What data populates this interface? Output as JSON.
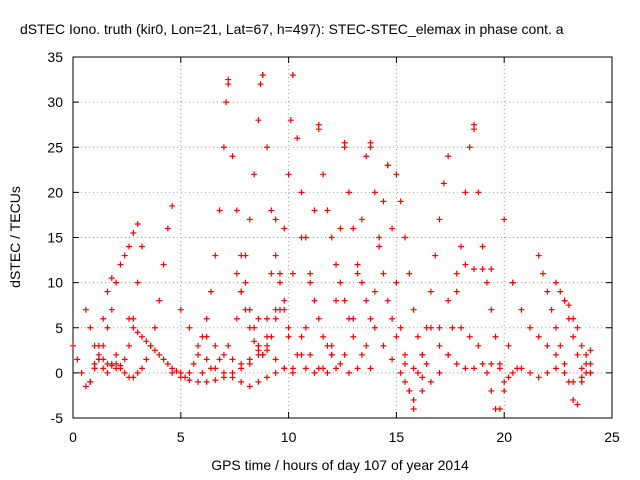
{
  "chart_data": {
    "type": "scatter",
    "title": "dSTEC Iono. truth (kir0, Lon=21, Lat=67, h=497): STEC-STEC_elemax in phase cont. a",
    "xlabel": "GPS time / hours of day 107 of year 2014",
    "ylabel": "dSTEC  / TECUs",
    "xlim": [
      0,
      25
    ],
    "ylim": [
      -5,
      35
    ],
    "xticks": [
      0,
      5,
      10,
      15,
      20,
      25
    ],
    "yticks": [
      -5,
      0,
      5,
      10,
      15,
      20,
      25,
      30,
      35
    ],
    "grid": true,
    "marker": "+",
    "color": "#ff0000",
    "series": [
      {
        "x": [
          0.0,
          0.2,
          0.4,
          0.6,
          0.8,
          1.0,
          1.2,
          1.4,
          1.6,
          1.8,
          2.0
        ],
        "y": [
          3,
          1.5,
          0,
          -1.5,
          -1,
          0.5,
          1.5,
          0.5,
          0,
          1,
          2
        ]
      },
      {
        "x": [
          0.6,
          0.8,
          1.0,
          1.2,
          1.4,
          1.6,
          1.8,
          2.0,
          2.2,
          2.4,
          2.6,
          2.8,
          3.0,
          3.2
        ],
        "y": [
          7,
          5,
          3,
          2,
          1.5,
          1,
          0.8,
          0.5,
          0.8,
          1.5,
          3,
          6,
          10,
          14
        ]
      },
      {
        "x": [
          0.8,
          1.0,
          1.2,
          1.4,
          1.6,
          1.8,
          2.0,
          2.2,
          2.4,
          2.6,
          2.8,
          3.0
        ],
        "y": [
          -1,
          0.5,
          1.5,
          3,
          5,
          7,
          10,
          12,
          13,
          14,
          15.5,
          16.5
        ]
      },
      {
        "x": [
          1.0,
          1.2,
          1.4,
          1.6,
          1.8
        ],
        "y": [
          1,
          3,
          6,
          9,
          10.5
        ]
      },
      {
        "x": [
          2.0,
          2.2,
          2.4,
          2.6,
          2.8,
          3.0,
          3.2,
          3.4,
          3.6,
          3.8,
          4.0,
          4.2,
          4.4,
          4.6
        ],
        "y": [
          1,
          0.5,
          0,
          -0.5,
          -0.5,
          0,
          0.5,
          1.5,
          3,
          5,
          8,
          12,
          16,
          18.5
        ]
      },
      {
        "x": [
          2.6,
          2.8,
          3.0,
          3.2,
          3.4,
          3.6,
          3.8,
          4.0,
          4.2,
          4.4,
          4.6,
          4.8,
          5.0
        ],
        "y": [
          6,
          5,
          4.5,
          4,
          3.5,
          3,
          2.5,
          2,
          1.5,
          1,
          0.5,
          0.2,
          0
        ]
      },
      {
        "x": [
          4.6,
          5.0,
          5.4,
          5.8,
          6.2,
          6.6,
          7.0,
          7.4,
          7.8,
          8.2,
          8.6,
          9.0,
          9.4,
          9.8,
          10.2,
          10.6
        ],
        "y": [
          0,
          -0.5,
          -0.8,
          -1,
          -1,
          -0.8,
          -0.5,
          0,
          0.5,
          1,
          2,
          4,
          6,
          8,
          11,
          15
        ]
      },
      {
        "x": [
          5.0,
          5.4,
          5.8,
          6.2,
          6.6,
          7.0,
          7.4,
          7.8,
          8.2,
          8.6,
          9.0,
          9.4,
          9.8,
          10.2
        ],
        "y": [
          7,
          5,
          3,
          1.5,
          0.5,
          0,
          -0.5,
          -1,
          -1.5,
          -1,
          -0.5,
          0,
          0.5,
          0
        ]
      },
      {
        "x": [
          5.2,
          5.4,
          5.6,
          5.8,
          6.0,
          6.2,
          6.4,
          6.6,
          6.8,
          7.0,
          7.1,
          7.2
        ],
        "y": [
          -0.5,
          0,
          1,
          2,
          4,
          6,
          9,
          13,
          18,
          25,
          30,
          32.5
        ]
      },
      {
        "x": [
          7.2,
          7.4,
          7.6,
          7.8,
          8.0,
          8.2,
          8.4,
          8.6,
          8.8
        ],
        "y": [
          32,
          24,
          18,
          13,
          10,
          7,
          5,
          3,
          2
        ]
      },
      {
        "x": [
          6.0,
          6.4,
          6.8,
          7.2,
          7.6,
          7.8,
          8.0,
          8.2,
          8.4,
          8.6,
          8.7,
          8.8
        ],
        "y": [
          0,
          0.5,
          1.5,
          3,
          6,
          9,
          13,
          17,
          22,
          28,
          32,
          33
        ]
      },
      {
        "x": [
          8.8,
          9.0,
          9.2,
          9.4,
          9.6,
          9.8,
          10.0
        ],
        "y": [
          33,
          25,
          18,
          13,
          10,
          7,
          5
        ]
      },
      {
        "x": [
          6.2,
          6.6,
          7.0,
          7.4,
          7.8,
          8.2,
          8.6,
          9.0,
          9.2,
          9.4
        ],
        "y": [
          4,
          3,
          2,
          1.5,
          1,
          1.5,
          3,
          6,
          11,
          17
        ]
      },
      {
        "x": [
          7.6,
          7.8,
          8.0,
          8.2,
          8.4,
          8.6,
          8.8,
          9.0,
          9.2,
          9.4,
          9.6,
          9.8,
          10.0,
          10.1,
          10.2
        ],
        "y": [
          11,
          9,
          7,
          5,
          3.5,
          2.5,
          2,
          2.5,
          4,
          7,
          11,
          16,
          22,
          28,
          33
        ]
      },
      {
        "x": [
          10.2,
          10.4,
          10.6,
          10.8,
          11.0,
          11.2,
          11.4,
          11.6,
          11.8,
          12.0
        ],
        "y": [
          33,
          26,
          20,
          15,
          11,
          8,
          6,
          4,
          3,
          2
        ]
      },
      {
        "x": [
          8.6,
          9.0,
          9.4,
          9.8,
          10.2,
          10.6,
          10.8,
          11.0,
          11.2,
          11.4
        ],
        "y": [
          6,
          3,
          1.5,
          0.5,
          0.5,
          2,
          5,
          10,
          18,
          27.5
        ]
      },
      {
        "x": [
          11.4,
          11.6,
          11.8,
          12.0,
          12.2,
          12.4,
          12.6,
          12.8,
          13.0,
          13.4,
          13.8
        ],
        "y": [
          27,
          22,
          18,
          15,
          12,
          10,
          8,
          6,
          4,
          2,
          0.5
        ]
      },
      {
        "x": [
          9.6,
          10.0,
          10.4,
          10.8,
          11.2,
          11.6,
          12.0,
          12.2,
          12.4,
          12.6
        ],
        "y": [
          7,
          4,
          2,
          0.5,
          0,
          0.5,
          3,
          8,
          16,
          25.5
        ]
      },
      {
        "x": [
          12.6,
          12.8,
          13.0,
          13.2,
          13.4,
          13.6,
          13.8,
          14.0,
          14.4,
          14.8,
          15.2
        ],
        "y": [
          25,
          20,
          16,
          12,
          10,
          8,
          6,
          5,
          3,
          1.5,
          0
        ]
      },
      {
        "x": [
          10.6,
          11.0,
          11.4,
          11.8,
          12.2,
          12.6,
          13.0,
          13.2,
          13.4,
          13.6,
          13.8
        ],
        "y": [
          4,
          2,
          0.5,
          0,
          0.5,
          2,
          6,
          11,
          17,
          24,
          25.5
        ]
      },
      {
        "x": [
          13.8,
          14.0,
          14.2,
          14.4,
          14.6,
          14.8,
          15.0,
          15.4,
          15.8,
          16.2
        ],
        "y": [
          25,
          20,
          15,
          11,
          8,
          6,
          4,
          2,
          0.5,
          -0.5
        ]
      },
      {
        "x": [
          12.0,
          12.4,
          12.8,
          13.2,
          13.6,
          14.0,
          14.2,
          14.4,
          14.6
        ],
        "y": [
          2,
          1,
          0,
          0.5,
          3,
          9,
          14,
          19,
          23
        ]
      },
      {
        "x": [
          14.6,
          14.8,
          15.0,
          15.2,
          15.4,
          15.6,
          15.8
        ],
        "y": [
          23,
          16,
          10,
          5,
          1,
          -2,
          -4
        ]
      },
      {
        "x": [
          15.0,
          15.2,
          15.4,
          15.6,
          15.8,
          16.0,
          16.2,
          16.4
        ],
        "y": [
          22,
          19,
          15,
          11,
          7,
          4,
          2,
          1
        ]
      },
      {
        "x": [
          15.4,
          15.6,
          15.8,
          16.2,
          16.6,
          17.0,
          17.4,
          17.6,
          17.8,
          18.0,
          18.2,
          18.4,
          18.6
        ],
        "y": [
          -1,
          -2,
          -3,
          -2,
          -1,
          0,
          2,
          5,
          9,
          14,
          20,
          25,
          27.5
        ]
      },
      {
        "x": [
          18.6,
          18.8,
          19.0,
          19.2,
          19.4,
          19.6,
          19.8,
          20.0
        ],
        "y": [
          27,
          20,
          14,
          10,
          7,
          4,
          1,
          -1
        ]
      },
      {
        "x": [
          16.0,
          16.2,
          16.4,
          16.6,
          16.8,
          17.0,
          17.2,
          17.4
        ],
        "y": [
          0,
          2,
          5,
          9,
          13,
          17,
          21,
          24
        ]
      },
      {
        "x": [
          16.6,
          17.0,
          17.4,
          17.8,
          18.2,
          18.6,
          19.0,
          19.4,
          19.8,
          20.2,
          20.6
        ],
        "y": [
          5,
          3,
          2,
          1,
          0.5,
          0.5,
          1,
          1,
          0.5,
          -0.5,
          0.5
        ]
      },
      {
        "x": [
          17.0,
          17.4,
          17.8,
          18.2,
          18.6,
          19.0,
          19.4
        ],
        "y": [
          5,
          8,
          11,
          12,
          11.5,
          11.5,
          11.5
        ]
      },
      {
        "x": [
          18.0,
          18.4,
          18.8,
          19.2,
          19.4,
          19.6,
          19.8,
          20.0,
          20.2,
          20.4
        ],
        "y": [
          5,
          4,
          3,
          0,
          -2,
          -4,
          -4,
          -2,
          3,
          10
        ]
      },
      {
        "x": [
          20.0,
          20.4,
          20.8,
          21.2,
          21.6,
          22.0,
          22.4
        ],
        "y": [
          17,
          10,
          7,
          5,
          4,
          3,
          2
        ]
      },
      {
        "x": [
          20.4,
          20.8,
          21.2,
          21.6,
          22.0,
          22.4,
          22.8,
          23.2,
          23.6,
          24.0
        ],
        "y": [
          0,
          0.5,
          0,
          -0.5,
          0,
          0.5,
          0,
          -1,
          -0.5,
          0
        ]
      },
      {
        "x": [
          21.6,
          21.8,
          22.0,
          22.2,
          22.4,
          22.6,
          22.8,
          23.0,
          23.2,
          23.4,
          23.6,
          23.8,
          24.0
        ],
        "y": [
          13,
          11,
          9,
          7,
          5,
          3,
          1,
          -1,
          -3,
          -3.5,
          -1,
          1,
          2.5
        ]
      },
      {
        "x": [
          22.4,
          22.6,
          22.8,
          23.0,
          23.2,
          23.4,
          23.6,
          23.8,
          24.0
        ],
        "y": [
          10,
          9,
          8,
          6,
          4,
          2,
          0.5,
          0,
          0
        ]
      },
      {
        "x": [
          22.8,
          23.0,
          23.2,
          23.4,
          23.6,
          23.8,
          24.0
        ],
        "y": [
          8,
          7.5,
          6,
          5,
          3,
          2,
          1
        ]
      }
    ]
  }
}
